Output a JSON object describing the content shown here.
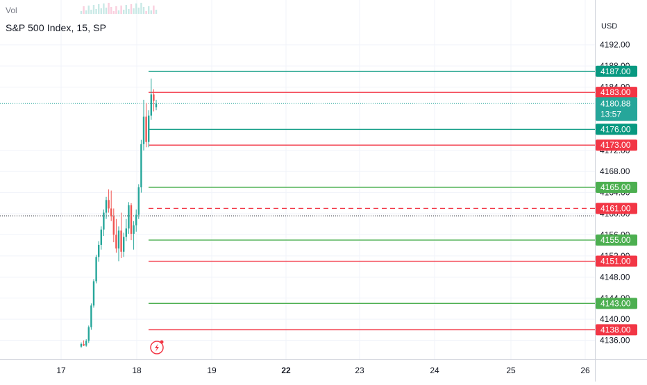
{
  "header": {
    "title": "S&P 500 Index, 15, SP",
    "volume_label": "Vol",
    "currency": "USD"
  },
  "colors": {
    "up": "#26a69a",
    "down": "#ef5350",
    "green_level": "#4caf50",
    "teal_level": "#089981",
    "red_level": "#f23645",
    "grid": "#f0f3fa",
    "axis_text": "#131722"
  },
  "chart_data": {
    "type": "line",
    "title": "S&P 500 Index, 15, SP",
    "ylim": [
      4134.5,
      4194.2
    ],
    "y_ticks": [
      {
        "value": 4192,
        "label": "4192.00"
      },
      {
        "value": 4188,
        "label": "4188.00"
      },
      {
        "value": 4184,
        "label": "4184.00"
      },
      {
        "value": 4172,
        "label": "4172.00"
      },
      {
        "value": 4168,
        "label": "4168.00"
      },
      {
        "value": 4164,
        "label": "4164.00"
      },
      {
        "value": 4160,
        "label": "4160.00"
      },
      {
        "value": 4156,
        "label": "4156.00"
      },
      {
        "value": 4152,
        "label": "4152.00"
      },
      {
        "value": 4148,
        "label": "4148.00"
      },
      {
        "value": 4144,
        "label": "4144.00"
      },
      {
        "value": 4140,
        "label": "4140.00"
      },
      {
        "value": 4136,
        "label": "4136.00"
      }
    ],
    "x_ticks": [
      {
        "label": "17",
        "index": 0,
        "bold": false
      },
      {
        "label": "18",
        "index": 1,
        "bold": false
      },
      {
        "label": "19",
        "index": 2,
        "bold": false
      },
      {
        "label": "22",
        "index": 3,
        "bold": true
      },
      {
        "label": "23",
        "index": 4,
        "bold": false
      },
      {
        "label": "24",
        "index": 5,
        "bold": false
      },
      {
        "label": "25",
        "index": 6,
        "bold": false
      },
      {
        "label": "26",
        "index": 7,
        "bold": false
      }
    ],
    "levels": [
      {
        "value": 4187.0,
        "label": "4187.00",
        "color": "teal",
        "dashed": false
      },
      {
        "value": 4183.0,
        "label": "4183.00",
        "color": "red",
        "dashed": false
      },
      {
        "value": 4176.0,
        "label": "4176.00",
        "color": "teal",
        "dashed": false
      },
      {
        "value": 4173.0,
        "label": "4173.00",
        "color": "red",
        "dashed": false
      },
      {
        "value": 4165.0,
        "label": "4165.00",
        "color": "green",
        "dashed": false
      },
      {
        "value": 4161.0,
        "label": "4161.00",
        "color": "red",
        "dashed": true
      },
      {
        "value": 4155.0,
        "label": "4155.00",
        "color": "green",
        "dashed": false
      },
      {
        "value": 4151.0,
        "label": "4151.00",
        "color": "red",
        "dashed": false
      },
      {
        "value": 4143.0,
        "label": "4143.00",
        "color": "green",
        "dashed": false
      },
      {
        "value": 4138.0,
        "label": "4138.00",
        "color": "red",
        "dashed": false
      }
    ],
    "last_price": {
      "value": 4180.88,
      "label": "4180.88",
      "countdown": "13:57"
    },
    "reference_value": 4159.6,
    "candles": [
      {
        "o": 4134.8,
        "h": 4135.6,
        "l": 4134.6,
        "c": 4135.3
      },
      {
        "o": 4135.3,
        "h": 4136.0,
        "l": 4134.9,
        "c": 4135.0
      },
      {
        "o": 4135.0,
        "h": 4136.2,
        "l": 4134.8,
        "c": 4135.9
      },
      {
        "o": 4135.9,
        "h": 4138.8,
        "l": 4135.5,
        "c": 4138.5
      },
      {
        "o": 4138.5,
        "h": 4143.0,
        "l": 4138.0,
        "c": 4142.6
      },
      {
        "o": 4142.6,
        "h": 4147.6,
        "l": 4142.2,
        "c": 4147.2
      },
      {
        "o": 4147.2,
        "h": 4152.2,
        "l": 4146.8,
        "c": 4151.8
      },
      {
        "o": 4151.8,
        "h": 4154.8,
        "l": 4150.9,
        "c": 4154.1
      },
      {
        "o": 4154.1,
        "h": 4157.6,
        "l": 4153.2,
        "c": 4157.0
      },
      {
        "o": 4157.0,
        "h": 4160.8,
        "l": 4155.8,
        "c": 4160.2
      },
      {
        "o": 4160.2,
        "h": 4163.2,
        "l": 4159.0,
        "c": 4162.6
      },
      {
        "o": 4162.6,
        "h": 4164.6,
        "l": 4160.2,
        "c": 4161.0
      },
      {
        "o": 4161.0,
        "h": 4164.4,
        "l": 4158.6,
        "c": 4159.5
      },
      {
        "o": 4159.5,
        "h": 4161.0,
        "l": 4154.6,
        "c": 4156.0
      },
      {
        "o": 4156.0,
        "h": 4159.0,
        "l": 4152.6,
        "c": 4153.4
      },
      {
        "o": 4153.4,
        "h": 4157.6,
        "l": 4151.0,
        "c": 4156.8
      },
      {
        "o": 4156.8,
        "h": 4160.2,
        "l": 4151.6,
        "c": 4152.8
      },
      {
        "o": 4152.8,
        "h": 4156.4,
        "l": 4151.8,
        "c": 4155.6
      },
      {
        "o": 4155.6,
        "h": 4159.0,
        "l": 4154.8,
        "c": 4157.2
      },
      {
        "o": 4157.2,
        "h": 4162.2,
        "l": 4156.2,
        "c": 4161.6
      },
      {
        "o": 4161.6,
        "h": 4162.0,
        "l": 4155.0,
        "c": 4156.2
      },
      {
        "o": 4156.2,
        "h": 4158.6,
        "l": 4153.2,
        "c": 4157.8
      },
      {
        "o": 4157.8,
        "h": 4160.8,
        "l": 4156.6,
        "c": 4159.8
      },
      {
        "o": 4159.8,
        "h": 4165.6,
        "l": 4159.0,
        "c": 4165.0
      },
      {
        "o": 4165.0,
        "h": 4174.0,
        "l": 4164.0,
        "c": 4173.2
      },
      {
        "o": 4173.2,
        "h": 4181.6,
        "l": 4172.0,
        "c": 4178.4
      },
      {
        "o": 4178.4,
        "h": 4181.0,
        "l": 4172.6,
        "c": 4173.6
      },
      {
        "o": 4173.6,
        "h": 4179.6,
        "l": 4172.6,
        "c": 4178.6
      },
      {
        "o": 4178.6,
        "h": 4185.6,
        "l": 4177.8,
        "c": 4182.6
      },
      {
        "o": 4182.6,
        "h": 4183.6,
        "l": 4179.4,
        "c": 4181.4
      },
      {
        "o": 4180.2,
        "h": 4181.6,
        "l": 4179.6,
        "c": 4180.88
      }
    ]
  }
}
